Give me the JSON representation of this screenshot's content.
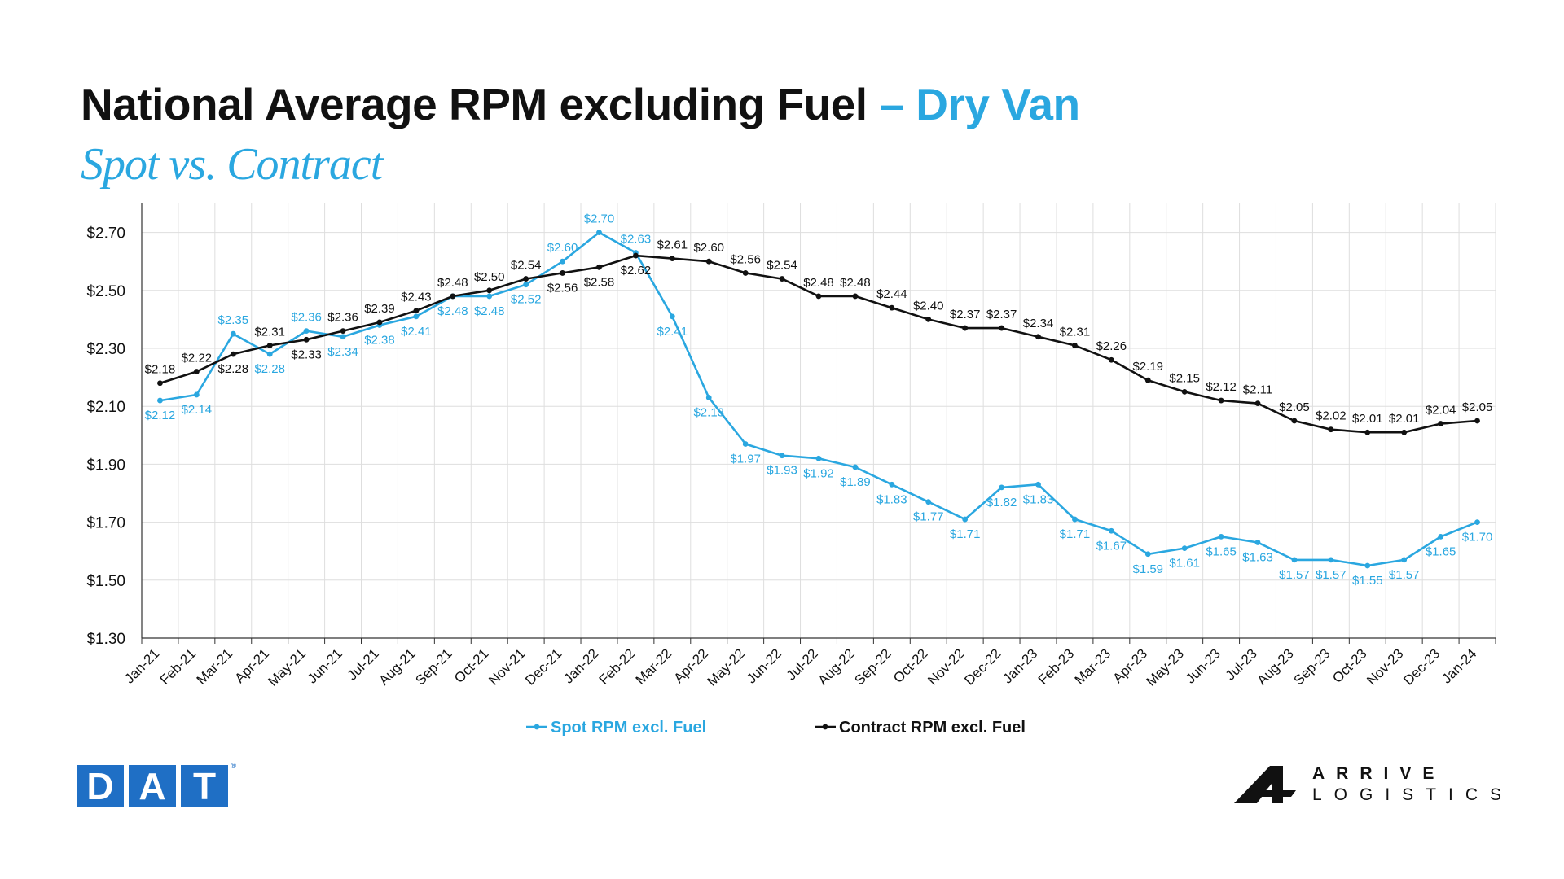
{
  "header": {
    "title": "National Average RPM excluding Fuel",
    "title_accent": "– Dry Van",
    "subtitle": "Spot vs. Contract"
  },
  "logos": {
    "dat": [
      "D",
      "A",
      "T"
    ],
    "dat_reg": "®",
    "arrive_line1": "ARRIVE",
    "arrive_line2": "LOGISTICS",
    "arrive_mark": "arrive-logistics-mark-icon"
  },
  "colors": {
    "spot": "#2aa7e0",
    "contract": "#111111",
    "grid": "#dedede",
    "axis": "#333333"
  },
  "chart_data": {
    "type": "line",
    "title": "National Average RPM excluding Fuel – Dry Van",
    "subtitle": "Spot vs. Contract",
    "xlabel": "",
    "ylabel": "",
    "ylim": [
      1.3,
      2.8
    ],
    "yticks": [
      "$1.30",
      "$1.50",
      "$1.70",
      "$1.90",
      "$2.10",
      "$2.30",
      "$2.50",
      "$2.70"
    ],
    "ytick_values": [
      1.3,
      1.5,
      1.7,
      1.9,
      2.1,
      2.3,
      2.5,
      2.7
    ],
    "grid": true,
    "legend": "bottom-center",
    "categories": [
      "Jan-21",
      "Feb-21",
      "Mar-21",
      "Apr-21",
      "May-21",
      "Jun-21",
      "Jul-21",
      "Aug-21",
      "Sep-21",
      "Oct-21",
      "Nov-21",
      "Dec-21",
      "Jan-22",
      "Feb-22",
      "Mar-22",
      "Apr-22",
      "May-22",
      "Jun-22",
      "Jul-22",
      "Aug-22",
      "Sep-22",
      "Oct-22",
      "Nov-22",
      "Dec-22",
      "Jan-23",
      "Feb-23",
      "Mar-23",
      "Apr-23",
      "May-23",
      "Jun-23",
      "Jul-23",
      "Aug-23",
      "Sep-23",
      "Oct-23",
      "Nov-23",
      "Dec-23",
      "Jan-24"
    ],
    "series": [
      {
        "name": "Spot RPM excl. Fuel",
        "values": [
          2.12,
          2.14,
          2.35,
          2.28,
          2.36,
          2.34,
          2.38,
          2.41,
          2.48,
          2.48,
          2.52,
          2.6,
          2.7,
          2.63,
          2.41,
          2.13,
          1.97,
          1.93,
          1.92,
          1.89,
          1.83,
          1.77,
          1.71,
          1.82,
          1.83,
          1.71,
          1.67,
          1.59,
          1.61,
          1.65,
          1.63,
          1.57,
          1.57,
          1.55,
          1.57,
          1.65,
          1.7
        ],
        "labels": [
          "$2.12",
          "$2.14",
          "$2.35",
          "$2.28",
          "$2.36",
          "$2.34",
          "$2.38",
          "$2.41",
          "$2.48",
          "$2.48",
          "$2.52",
          "$2.60",
          "$2.70",
          "$2.63",
          "$2.41",
          "$2.13",
          "$1.97",
          "$1.93",
          "$1.92",
          "$1.89",
          "$1.83",
          "$1.77",
          "$1.71",
          "$1.82",
          "$1.83",
          "$1.71",
          "$1.67",
          "$1.59",
          "$1.61",
          "$1.65",
          "$1.63",
          "$1.57",
          "$1.57",
          "$1.55",
          "$1.57",
          "$1.65",
          "$1.70"
        ]
      },
      {
        "name": "Contract RPM excl. Fuel",
        "values": [
          2.18,
          2.22,
          2.28,
          2.31,
          2.33,
          2.36,
          2.39,
          2.43,
          2.48,
          2.5,
          2.54,
          2.56,
          2.58,
          2.62,
          2.61,
          2.6,
          2.56,
          2.54,
          2.48,
          2.48,
          2.44,
          2.4,
          2.37,
          2.37,
          2.34,
          2.31,
          2.26,
          2.19,
          2.15,
          2.12,
          2.11,
          2.05,
          2.02,
          2.01,
          2.01,
          2.04,
          2.05
        ],
        "labels": [
          "$2.18",
          "$2.22",
          "$2.28",
          "$2.31",
          "$2.33",
          "$2.36",
          "$2.39",
          "$2.43",
          "$2.48",
          "$2.50",
          "$2.54",
          "$2.56",
          "$2.58",
          "$2.62",
          "$2.61",
          "$2.60",
          "$2.56",
          "$2.54",
          "$2.48",
          "$2.48",
          "$2.44",
          "$2.40",
          "$2.37",
          "$2.37",
          "$2.34",
          "$2.31",
          "$2.26",
          "$2.19",
          "$2.15",
          "$2.12",
          "$2.11",
          "$2.05",
          "$2.02",
          "$2.01",
          "$2.01",
          "$2.04",
          "$2.05"
        ]
      }
    ]
  }
}
